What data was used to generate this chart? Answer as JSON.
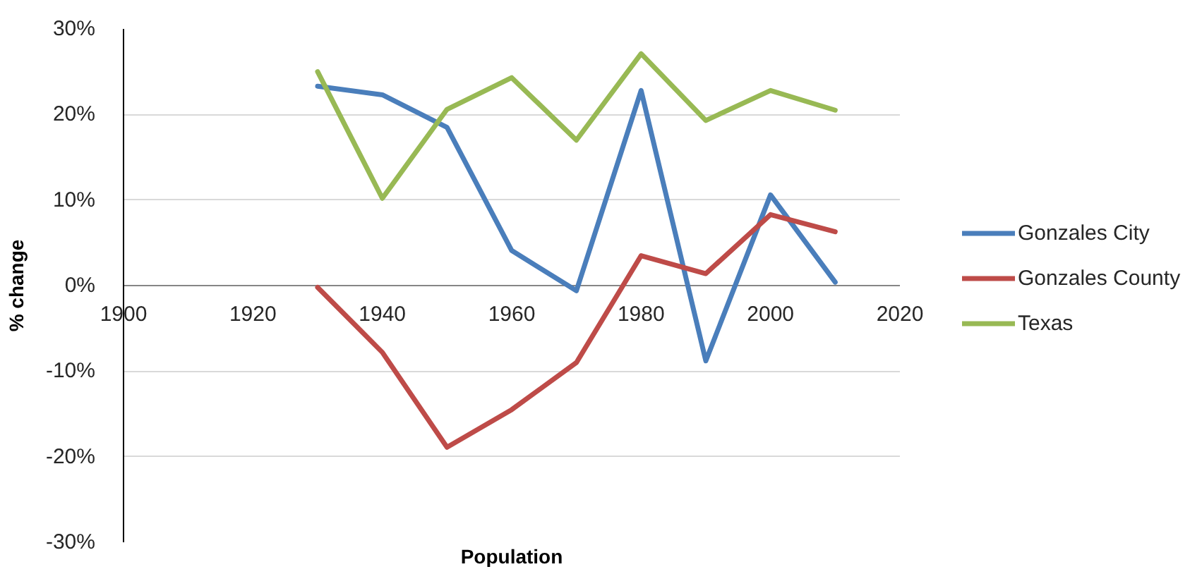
{
  "chart_data": {
    "type": "line",
    "xlabel": "Population",
    "ylabel": "% change",
    "x": [
      1930,
      1940,
      1950,
      1960,
      1970,
      1980,
      1990,
      2000,
      2010
    ],
    "series": [
      {
        "name": "Gonzales City",
        "color": "#4a7ebb",
        "values": [
          23.3,
          22.3,
          18.5,
          4.1,
          -0.6,
          22.8,
          -8.8,
          10.6,
          0.4
        ]
      },
      {
        "name": "Gonzales County",
        "color": "#be4b48",
        "values": [
          -0.2,
          -7.8,
          -18.9,
          -14.5,
          -9.0,
          3.5,
          1.4,
          8.3,
          6.3
        ]
      },
      {
        "name": "Texas",
        "color": "#98b954",
        "values": [
          25.0,
          10.2,
          20.6,
          24.3,
          17.0,
          27.1,
          19.3,
          22.8,
          20.5
        ]
      }
    ],
    "xlim": [
      1900,
      2020
    ],
    "xticks": [
      1900,
      1920,
      1940,
      1960,
      1980,
      2000,
      2020
    ],
    "ylim": [
      -30,
      30
    ],
    "yticks": [
      {
        "value": -30,
        "label": "-30%"
      },
      {
        "value": -20,
        "label": "-20%"
      },
      {
        "value": -10,
        "label": "-10%"
      },
      {
        "value": 0,
        "label": "0%"
      },
      {
        "value": 10,
        "label": "10%"
      },
      {
        "value": 20,
        "label": "20%"
      },
      {
        "value": 30,
        "label": "30%"
      }
    ],
    "grid": "y",
    "legend": "right"
  }
}
